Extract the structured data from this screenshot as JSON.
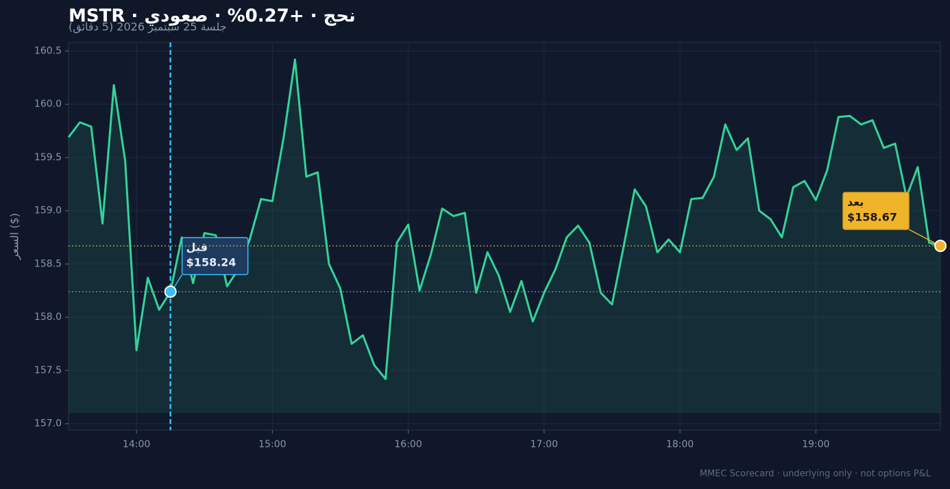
{
  "chart_data": {
    "type": "line",
    "title": "MSTR · نحج · +0.27% · صعودي",
    "subtitle": "جلسة 25 سبتمبر 2026 (5 دقائق)",
    "y_label": "السعر ($)",
    "footer": "MMEC Scorecard · underlying only · not options P&L",
    "color": "#34d399",
    "grid": true,
    "x": [
      "13:30",
      "13:35",
      "13:40",
      "13:45",
      "13:50",
      "13:55",
      "14:00",
      "14:05",
      "14:10",
      "14:15",
      "14:20",
      "14:25",
      "14:30",
      "14:35",
      "14:40",
      "14:45",
      "14:50",
      "14:55",
      "15:00",
      "15:05",
      "15:10",
      "15:15",
      "15:20",
      "15:25",
      "15:30",
      "15:35",
      "15:40",
      "15:45",
      "15:50",
      "15:55",
      "16:00",
      "16:05",
      "16:10",
      "16:15",
      "16:20",
      "16:25",
      "16:30",
      "16:35",
      "16:40",
      "16:45",
      "16:50",
      "16:55",
      "17:00",
      "17:05",
      "17:10",
      "17:15",
      "17:20",
      "17:25",
      "17:30",
      "17:35",
      "17:40",
      "17:45",
      "17:50",
      "17:55",
      "18:00",
      "18:05",
      "18:10",
      "18:15",
      "18:20",
      "18:25",
      "18:30",
      "18:35",
      "18:40",
      "18:45",
      "18:50",
      "18:55",
      "19:00",
      "19:05",
      "19:10",
      "19:15",
      "19:20",
      "19:25",
      "19:30",
      "19:35",
      "19:40",
      "19:45",
      "19:50",
      "19:55"
    ],
    "values": [
      159.69,
      159.83,
      159.79,
      158.88,
      160.18,
      159.47,
      157.69,
      158.37,
      158.07,
      158.24,
      158.75,
      158.32,
      158.79,
      158.77,
      158.29,
      158.45,
      158.73,
      159.11,
      159.09,
      159.69,
      160.42,
      159.32,
      159.36,
      158.5,
      158.27,
      157.75,
      157.83,
      157.55,
      157.42,
      158.7,
      158.87,
      158.25,
      158.59,
      159.02,
      158.95,
      158.98,
      158.23,
      158.61,
      158.39,
      158.05,
      158.34,
      157.96,
      158.23,
      158.45,
      158.75,
      158.86,
      158.7,
      158.23,
      158.12,
      158.65,
      159.2,
      159.04,
      158.61,
      158.73,
      158.61,
      159.11,
      159.12,
      159.32,
      159.81,
      159.57,
      159.68,
      159.0,
      158.92,
      158.75,
      159.22,
      159.28,
      159.1,
      159.38,
      159.88,
      159.89,
      159.81,
      159.85,
      159.59,
      159.63,
      159.13,
      159.41,
      158.7,
      158.67
    ],
    "xlim": [
      "13:30",
      "19:55"
    ],
    "xticks": [
      "14:00",
      "15:00",
      "16:00",
      "17:00",
      "18:00",
      "19:00"
    ],
    "ylim": [
      156.94,
      160.58
    ],
    "yticks": [
      {
        "value": 157,
        "label": "157.0"
      },
      157.5,
      {
        "value": 158,
        "label": "158.0"
      },
      158.5,
      {
        "value": 159,
        "label": "159.0"
      },
      159.5,
      {
        "value": 160,
        "label": "160.0"
      },
      160.5
    ],
    "annotations": [
      {
        "label": "قبل",
        "x": "14:15",
        "value": 158.24,
        "value_label": "$158.24",
        "color": "#38bdf8"
      },
      {
        "label": "بعد",
        "x": "19:55",
        "value": 158.67,
        "value_label": "$158.67",
        "color": "#f0b429"
      }
    ]
  }
}
